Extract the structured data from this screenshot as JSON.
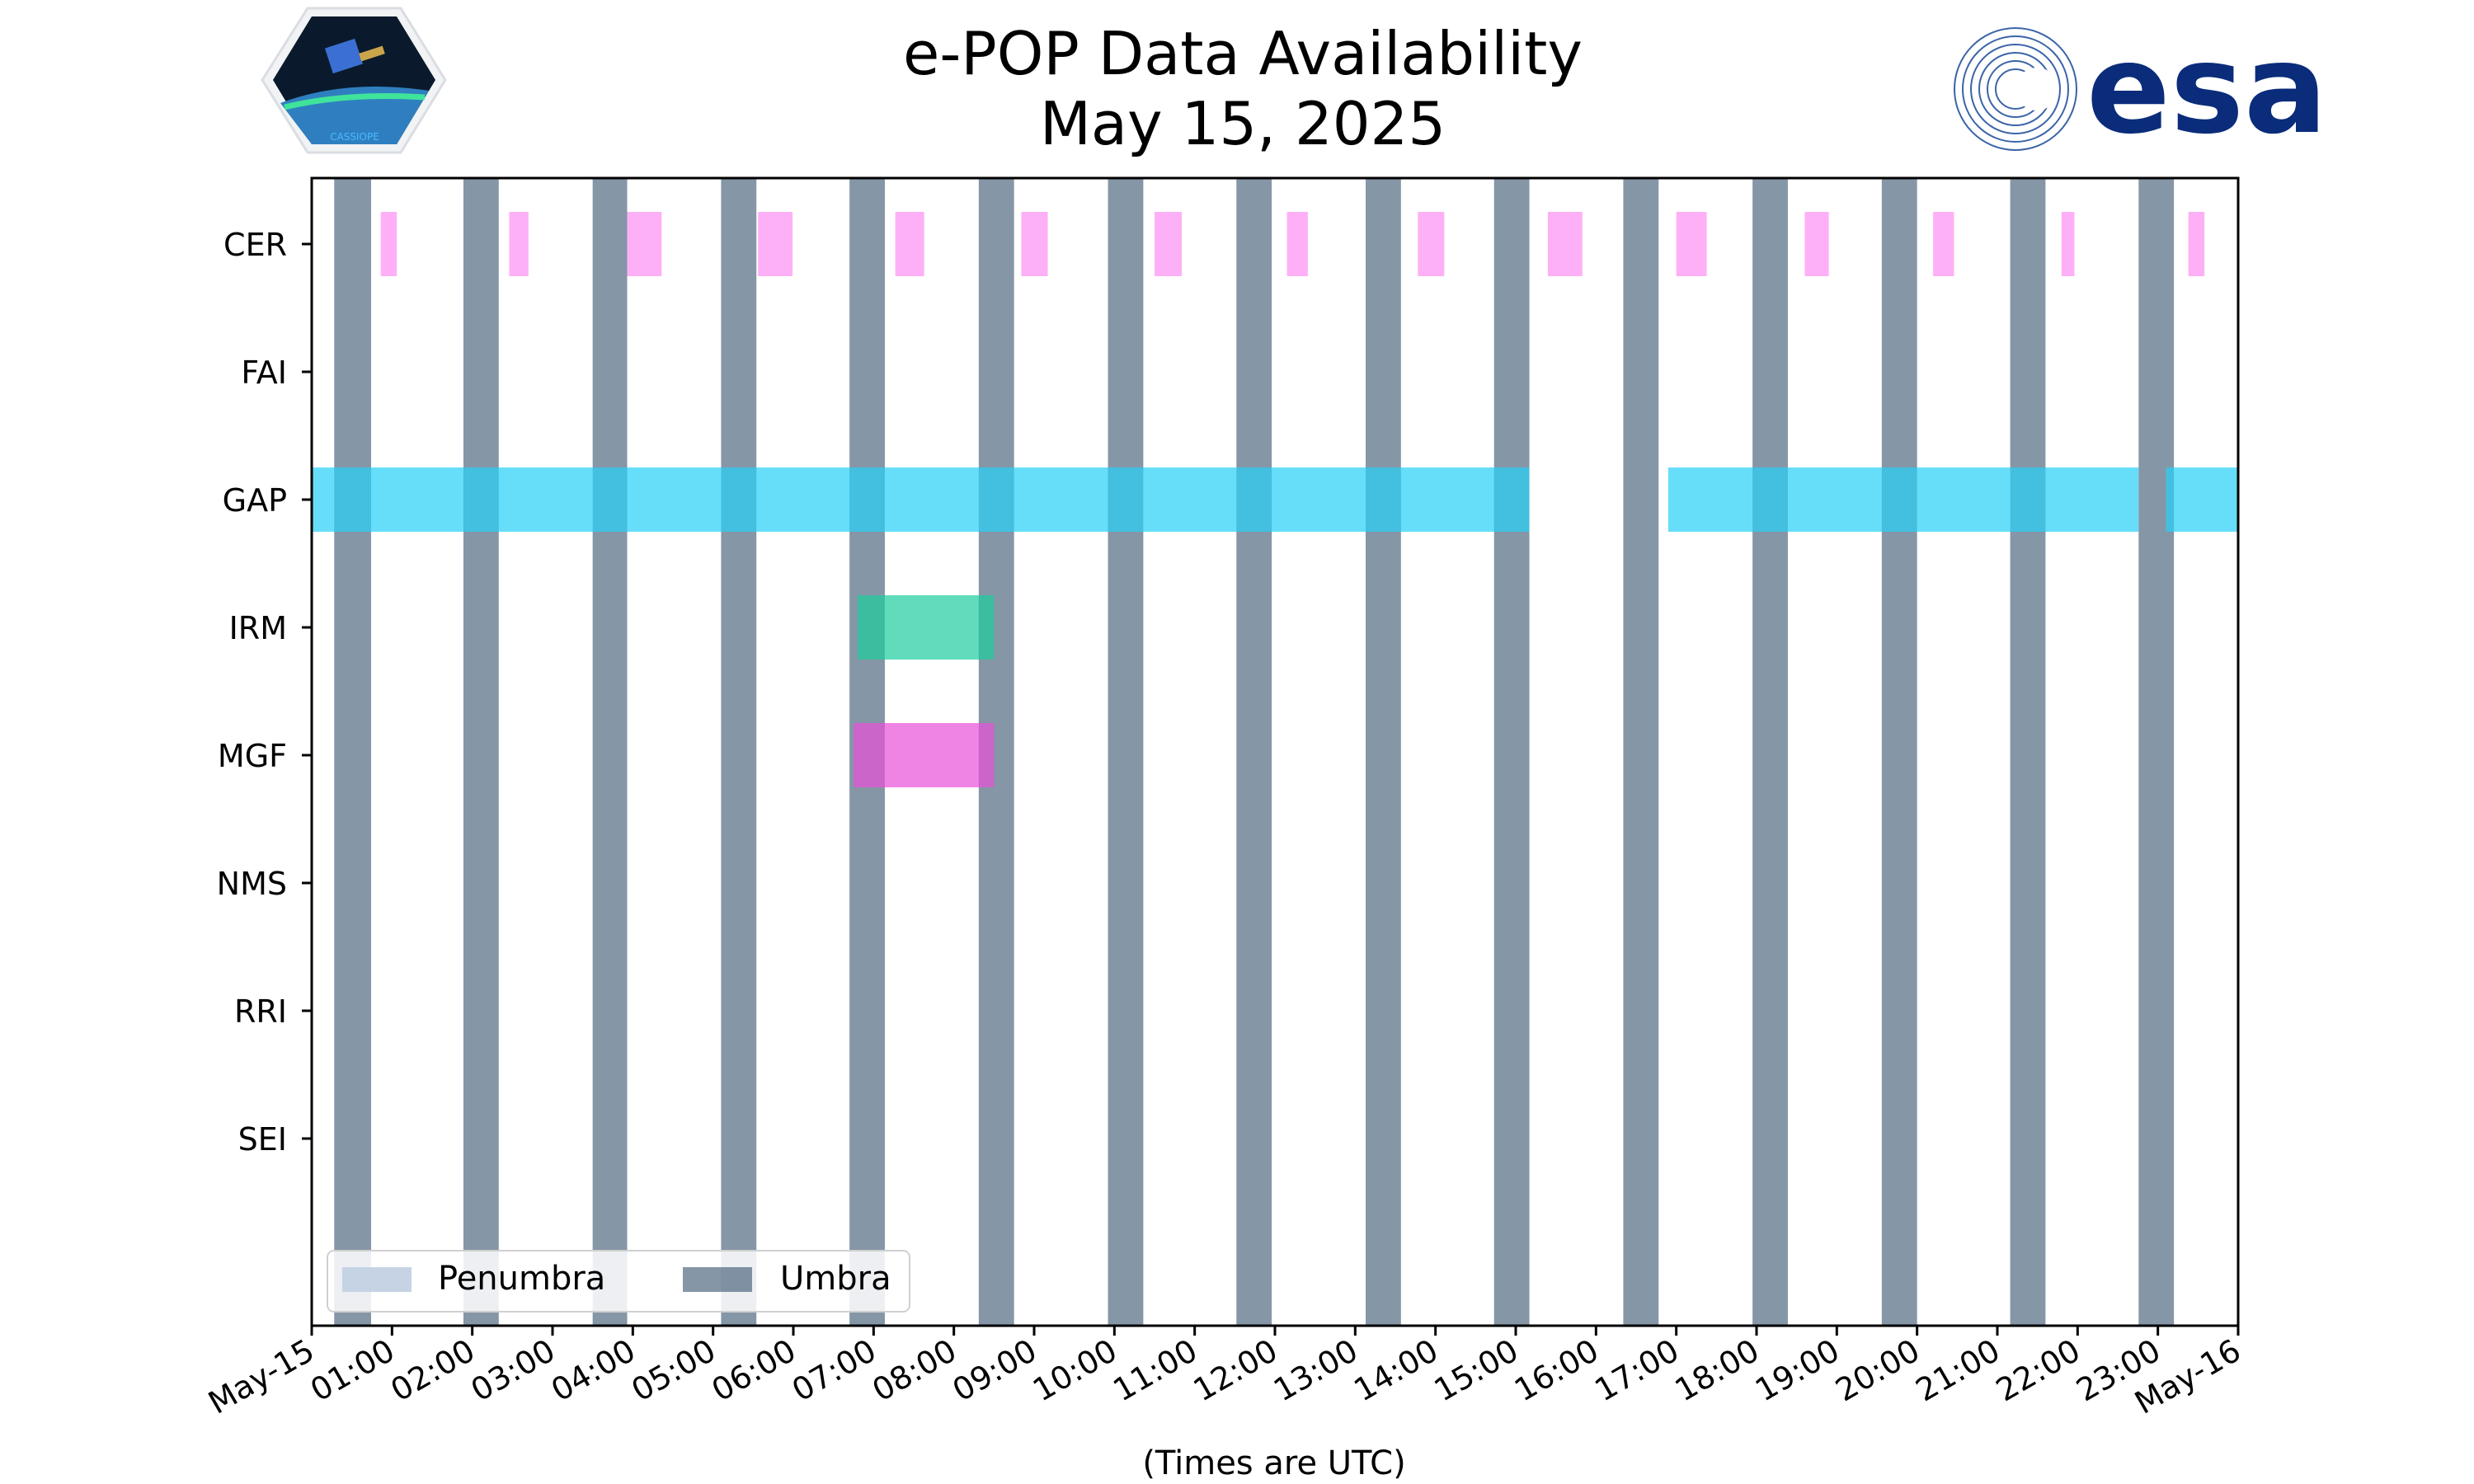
{
  "chart_data": {
    "type": "timeline",
    "title": [
      "e-POP Data Availability",
      "May 15, 2025"
    ],
    "xlabel": "(Times are UTC)",
    "x_range_hours": [
      0,
      24
    ],
    "xtick_labels": [
      "May-15",
      "01:00",
      "02:00",
      "03:00",
      "04:00",
      "05:00",
      "06:00",
      "07:00",
      "08:00",
      "09:00",
      "10:00",
      "11:00",
      "12:00",
      "13:00",
      "14:00",
      "15:00",
      "16:00",
      "17:00",
      "18:00",
      "19:00",
      "20:00",
      "21:00",
      "22:00",
      "23:00",
      "May-16"
    ],
    "categories": [
      "CER",
      "FAI",
      "GAP",
      "IRM",
      "MGF",
      "NMS",
      "RRI",
      "SEI"
    ],
    "legend": {
      "placement": "lower-left",
      "entries": [
        "Penumbra",
        "Umbra"
      ]
    },
    "colors": {
      "umbra": "#34506d",
      "penumbra": "#c5d3e4",
      "CER": "#fe7cf0",
      "GAP": "#27d0f6",
      "IRM": "#1ccd9c",
      "MGF": "#ea50d8"
    },
    "umbra_intervals_hours": [
      [
        0.28,
        0.74
      ],
      [
        1.89,
        2.33
      ],
      [
        3.5,
        3.93
      ],
      [
        5.1,
        5.54
      ],
      [
        6.7,
        7.14
      ],
      [
        8.31,
        8.75
      ],
      [
        9.92,
        10.36
      ],
      [
        11.52,
        11.96
      ],
      [
        13.13,
        13.57
      ],
      [
        14.73,
        15.17
      ],
      [
        16.34,
        16.78
      ],
      [
        17.95,
        18.39
      ],
      [
        19.56,
        20.0
      ],
      [
        21.16,
        21.6
      ],
      [
        22.76,
        23.2
      ]
    ],
    "series": [
      {
        "name": "CER",
        "intervals_hours": [
          [
            0.86,
            1.06
          ],
          [
            2.46,
            2.7
          ],
          [
            3.93,
            4.36
          ],
          [
            5.56,
            5.99
          ],
          [
            7.27,
            7.63
          ],
          [
            8.84,
            9.17
          ],
          [
            10.5,
            10.84
          ],
          [
            12.15,
            12.41
          ],
          [
            13.78,
            14.11
          ],
          [
            15.4,
            15.83
          ],
          [
            17.0,
            17.38
          ],
          [
            18.6,
            18.9
          ],
          [
            20.2,
            20.46
          ],
          [
            21.8,
            21.96
          ],
          [
            23.38,
            23.58
          ]
        ]
      },
      {
        "name": "FAI",
        "intervals_hours": []
      },
      {
        "name": "GAP",
        "intervals_hours": [
          [
            0.0,
            15.17
          ],
          [
            16.9,
            22.76
          ],
          [
            23.1,
            24.0
          ]
        ]
      },
      {
        "name": "IRM",
        "intervals_hours": [
          [
            6.8,
            8.5
          ]
        ]
      },
      {
        "name": "MGF",
        "intervals_hours": [
          [
            6.75,
            8.5
          ]
        ]
      },
      {
        "name": "NMS",
        "intervals_hours": []
      },
      {
        "name": "RRI",
        "intervals_hours": []
      },
      {
        "name": "SEI",
        "intervals_hours": []
      }
    ]
  },
  "logos": {
    "left_caption": "CASSIOPE",
    "right_text": "esa"
  }
}
